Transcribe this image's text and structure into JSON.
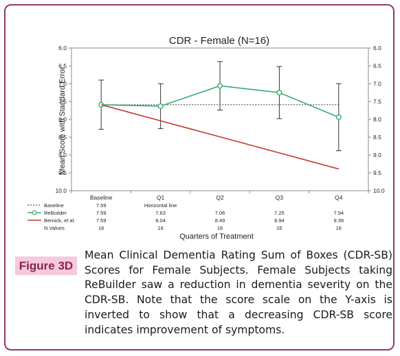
{
  "figure": {
    "label": "Figure 3D",
    "caption": "Mean Clinical Dementia Rating Sum of Boxes (CDR-SB) Scores for Female Subjects. Female Subjects taking ReBuilder saw a reduction in dementia severity on the CDR-SB. Note that the score scale on the Y-axis is inverted to show that a decreasing CDR-SB score indicates improvement of symptoms."
  },
  "chart_data": {
    "type": "line",
    "title": "CDR - Female (N=16)",
    "xlabel": "Quarters of Treatment",
    "ylabel": "Mean Score with Standard Error",
    "categories": [
      "Baseline",
      "Q1",
      "Q2",
      "Q3",
      "Q4"
    ],
    "y_inverted": true,
    "ylim": [
      6.0,
      10.0
    ],
    "yticks": [
      "6.0",
      "6.5",
      "7.0",
      "7.5",
      "8.0",
      "8.5",
      "9.0",
      "9.5",
      "10.0"
    ],
    "series": [
      {
        "name": "Baseline",
        "style": "dotted",
        "color": "#333333",
        "values": [
          7.59,
          7.59,
          7.59,
          7.59,
          7.59
        ],
        "table_values": [
          "7.59",
          "Horizontal line",
          "",
          "",
          ""
        ]
      },
      {
        "name": "ReBuilder",
        "style": "solid-markers",
        "color": "#3aaa6e",
        "values": [
          7.59,
          7.63,
          7.06,
          7.25,
          7.94
        ],
        "errors_low": [
          6.9,
          7.0,
          6.38,
          6.52,
          7.0
        ],
        "errors_high": [
          8.28,
          8.26,
          7.74,
          7.98,
          8.88
        ],
        "table_values": [
          "7.59",
          "7.63",
          "7.06",
          "7.25",
          "7.94"
        ]
      },
      {
        "name": "Bernick, et al.",
        "style": "solid",
        "color": "#c0392b",
        "values": [
          7.59,
          8.04,
          8.49,
          8.94,
          9.39
        ],
        "table_values": [
          "7.59",
          "8.04",
          "8.49",
          "8.94",
          "9.39"
        ]
      }
    ],
    "n_row": {
      "label": "N Values",
      "values": [
        "16",
        "16",
        "16",
        "16",
        "16"
      ]
    },
    "grid": false,
    "legend": "table-below"
  }
}
